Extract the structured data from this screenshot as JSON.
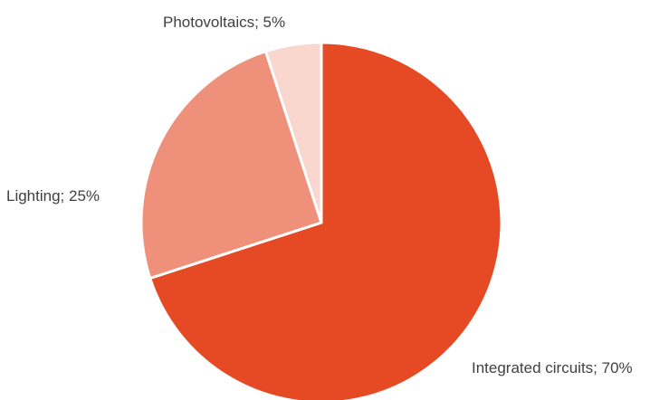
{
  "chart_data": {
    "type": "pie",
    "title": "",
    "slices": [
      {
        "label": "Integrated circuits; 70%",
        "name": "Integrated circuits",
        "value": 70,
        "color": "#E54A24"
      },
      {
        "label": "Lighting; 25%",
        "name": "Lighting",
        "value": 25,
        "color": "#EE907A"
      },
      {
        "label": "Photovoltaics; 5%",
        "name": "Photovoltaics",
        "value": 5,
        "color": "#F9D7CF"
      }
    ],
    "start_angle_deg": 0,
    "direction": "clockwise",
    "slice_border_color": "#ffffff",
    "label_color": "#404040"
  }
}
